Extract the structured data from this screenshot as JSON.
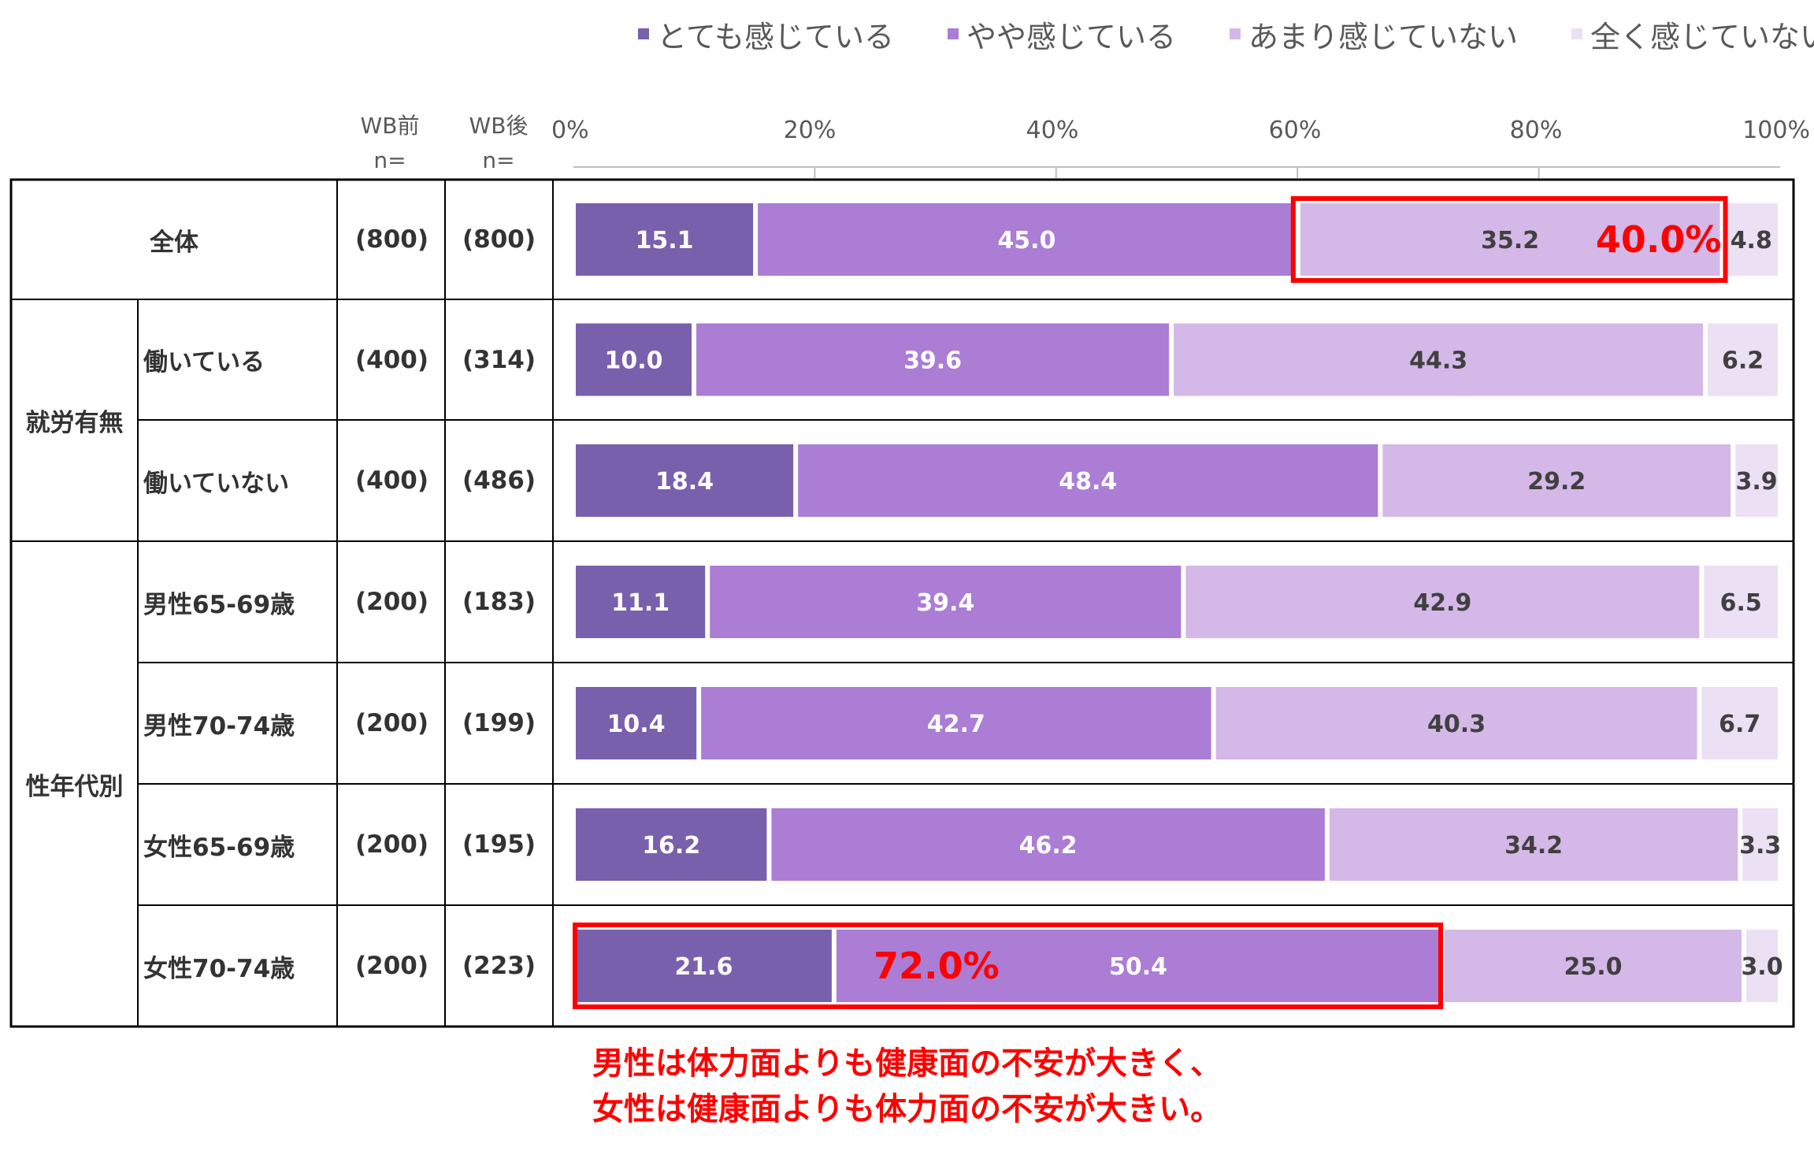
{
  "legend": {
    "items": [
      {
        "label": "とても感じている",
        "color": "#7960ac"
      },
      {
        "label": "やや感じている",
        "color": "#ab7dd5"
      },
      {
        "label": "あまり感じていない",
        "color": "#d4b8e7"
      },
      {
        "label": "全く感じていない",
        "color": "#ebe0f4"
      }
    ]
  },
  "headers": {
    "before_line1": "WB前",
    "before_line2": "n=",
    "after_line1": "WB後",
    "after_line2": "n="
  },
  "groups": {
    "work": "就労有無",
    "sexage": "性年代別"
  },
  "chart_data": {
    "type": "bar",
    "orientation": "horizontal",
    "stacked": true,
    "xlim": [
      0,
      100
    ],
    "x_ticks": [
      "0%",
      "20%",
      "40%",
      "60%",
      "80%",
      "100%"
    ],
    "categories": [
      "全体",
      "働いている",
      "働いていない",
      "男性65-69歳",
      "男性70-74歳",
      "女性65-69歳",
      "女性70-74歳"
    ],
    "n_before": [
      "(800)",
      "(400)",
      "(400)",
      "(200)",
      "(200)",
      "(200)",
      "(200)"
    ],
    "n_after": [
      "(800)",
      "(314)",
      "(486)",
      "(183)",
      "(199)",
      "(195)",
      "(223)"
    ],
    "series": [
      {
        "name": "とても感じている",
        "color": "#7960ac",
        "values": [
          15.1,
          10.0,
          18.4,
          11.1,
          10.4,
          16.2,
          21.6
        ]
      },
      {
        "name": "やや感じている",
        "color": "#ab7dd5",
        "values": [
          45.0,
          39.6,
          48.4,
          39.4,
          42.7,
          46.2,
          50.4
        ]
      },
      {
        "name": "あまり感じていない",
        "color": "#d4b8e7",
        "values": [
          35.2,
          44.3,
          29.2,
          42.9,
          40.3,
          34.2,
          25.0
        ]
      },
      {
        "name": "全く感じていない",
        "color": "#ebe0f4",
        "values": [
          4.8,
          6.2,
          3.9,
          6.5,
          6.7,
          3.3,
          3.0
        ]
      }
    ],
    "value_labels": [
      [
        "15.1",
        "45.0",
        "35.2",
        "4.8"
      ],
      [
        "10.0",
        "39.6",
        "44.3",
        "6.2"
      ],
      [
        "18.4",
        "48.4",
        "29.2",
        "3.9"
      ],
      [
        "11.1",
        "39.4",
        "42.9",
        "6.5"
      ],
      [
        "10.4",
        "42.7",
        "40.3",
        "6.7"
      ],
      [
        "16.2",
        "46.2",
        "34.2",
        "3.3"
      ],
      [
        "21.6",
        "50.4",
        "25.0",
        "3.0"
      ]
    ],
    "highlights": [
      {
        "category": "全体",
        "from_series": 2,
        "to_series": 3,
        "label": "40.0%"
      },
      {
        "category": "女性70-74歳",
        "from_series": 0,
        "to_series": 1,
        "label": "72.0%"
      }
    ]
  },
  "annotation": {
    "line1": "男性は体力面よりも健康面の不安が大きく、",
    "line2": "女性は健康面よりも体力面の不安が大きい。"
  }
}
